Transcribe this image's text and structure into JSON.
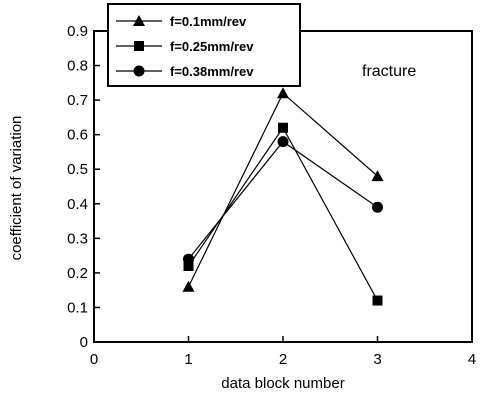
{
  "chart_data": {
    "type": "line",
    "xlabel": "data block number",
    "ylabel": "coefficient of variation",
    "xlim": [
      0,
      4
    ],
    "ylim": [
      0,
      0.9
    ],
    "xticks": [
      "0",
      "1",
      "2",
      "3",
      "4"
    ],
    "yticks": [
      "0",
      "0.1",
      "0.2",
      "0.3",
      "0.4",
      "0.5",
      "0.6",
      "0.7",
      "0.8",
      "0.9"
    ],
    "annotation": "fracture",
    "grid": false,
    "legend_position": "top-left",
    "x": [
      1,
      2,
      3
    ],
    "series": [
      {
        "name": "f=0.1mm/rev",
        "marker": "triangle",
        "values": [
          0.16,
          0.72,
          0.48
        ]
      },
      {
        "name": "f=0.25mm/rev",
        "marker": "square",
        "values": [
          0.22,
          0.62,
          0.12
        ]
      },
      {
        "name": "f=0.38mm/rev",
        "marker": "circle",
        "values": [
          0.24,
          0.58,
          0.39
        ]
      }
    ],
    "colors": {
      "line": "#000000",
      "marker": "#000000",
      "background": "#ffffff"
    }
  }
}
